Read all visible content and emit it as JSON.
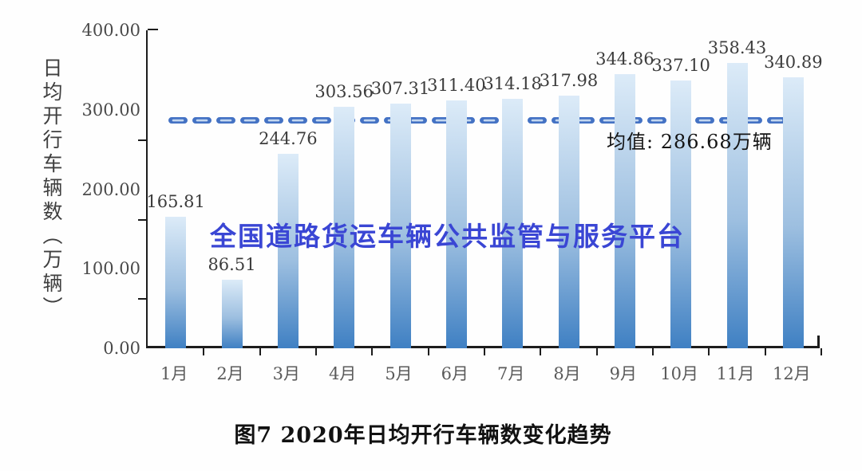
{
  "watermark": {
    "text": "全国道路货运车辆公共监管与服务平台",
    "color": "#3a46d4"
  },
  "caption": "图7 2020年日均开行车辆数变化趋势",
  "chart_data": {
    "type": "bar",
    "title": "",
    "xlabel": "",
    "ylabel": "日均开行车辆数（万辆）",
    "ylim": [
      0,
      400
    ],
    "yticks": [
      "400.00",
      "300.00",
      "200.00",
      "100.00",
      "0.00"
    ],
    "grid": false,
    "legend": null,
    "categories": [
      "1月",
      "2月",
      "3月",
      "4月",
      "5月",
      "6月",
      "7月",
      "8月",
      "9月",
      "10月",
      "11月",
      "12月"
    ],
    "values": [
      165.81,
      86.51,
      244.76,
      303.56,
      307.31,
      311.4,
      314.18,
      317.98,
      344.86,
      337.1,
      358.43,
      340.89
    ],
    "average_line": {
      "value": 286.68,
      "label": "均值: 286.68万辆",
      "style": "dashed"
    },
    "colors": {
      "bar_top": "#dcebf8",
      "bar_bottom": "#3f80c3",
      "dash_outline": "#4472c4",
      "dash_inner": "#c3d7ef",
      "axis": "#1c1c1c"
    }
  }
}
